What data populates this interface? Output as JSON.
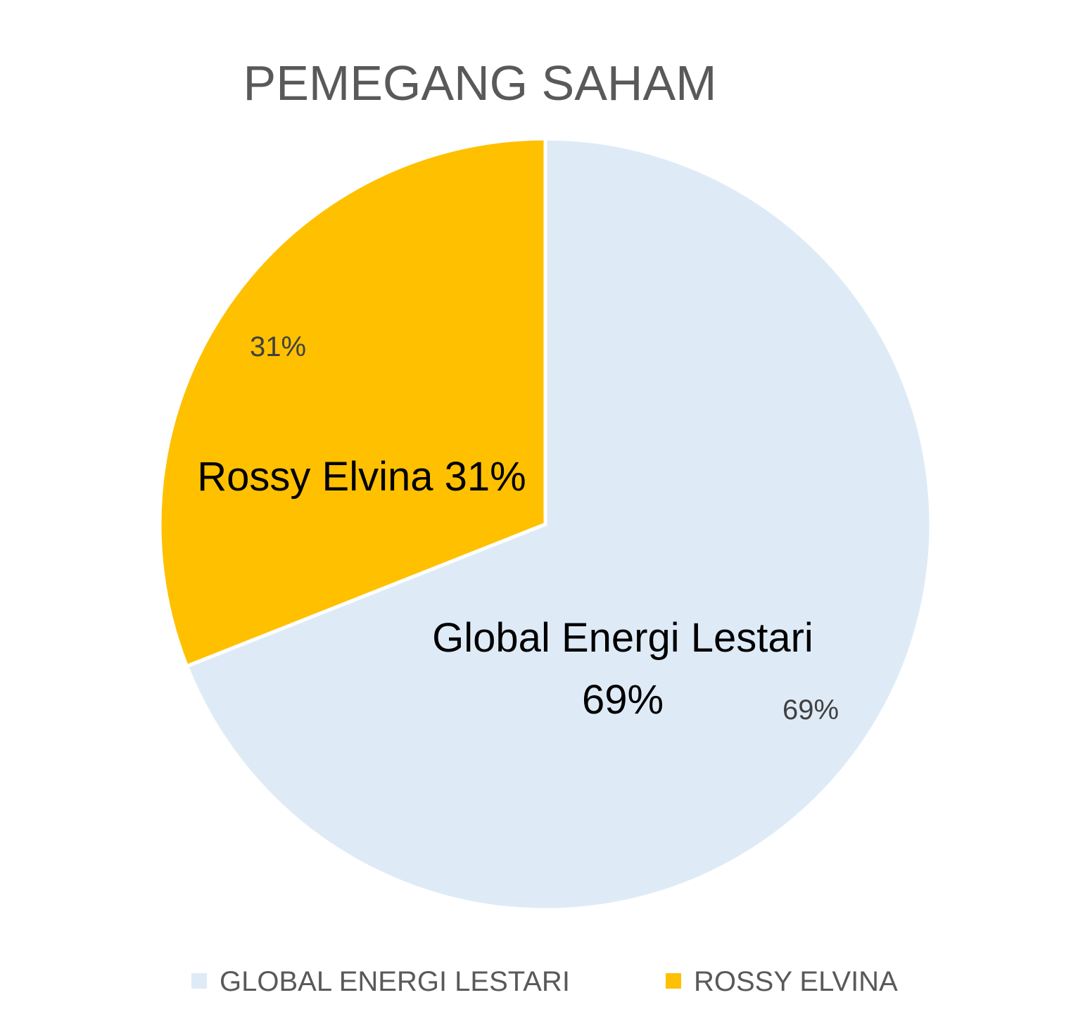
{
  "chart_data": {
    "type": "pie",
    "title": "PEMEGANG SAHAM",
    "slices": [
      {
        "name": "Global Energi Lestari",
        "legend_label": "GLOBAL ENERGI LESTARI",
        "value": 69,
        "percent_label": "69%",
        "annotation_line1": "Global Energi Lestari",
        "annotation_line2": "69%",
        "color": "#DEEBF7"
      },
      {
        "name": "Rossy Elvina",
        "legend_label": "ROSSY ELVINA",
        "value": 31,
        "percent_label": "31%",
        "annotation_line1": "Rossy Elvina 31%",
        "annotation_line2": "",
        "color": "#FFC000"
      }
    ],
    "legend_position": "bottom"
  }
}
